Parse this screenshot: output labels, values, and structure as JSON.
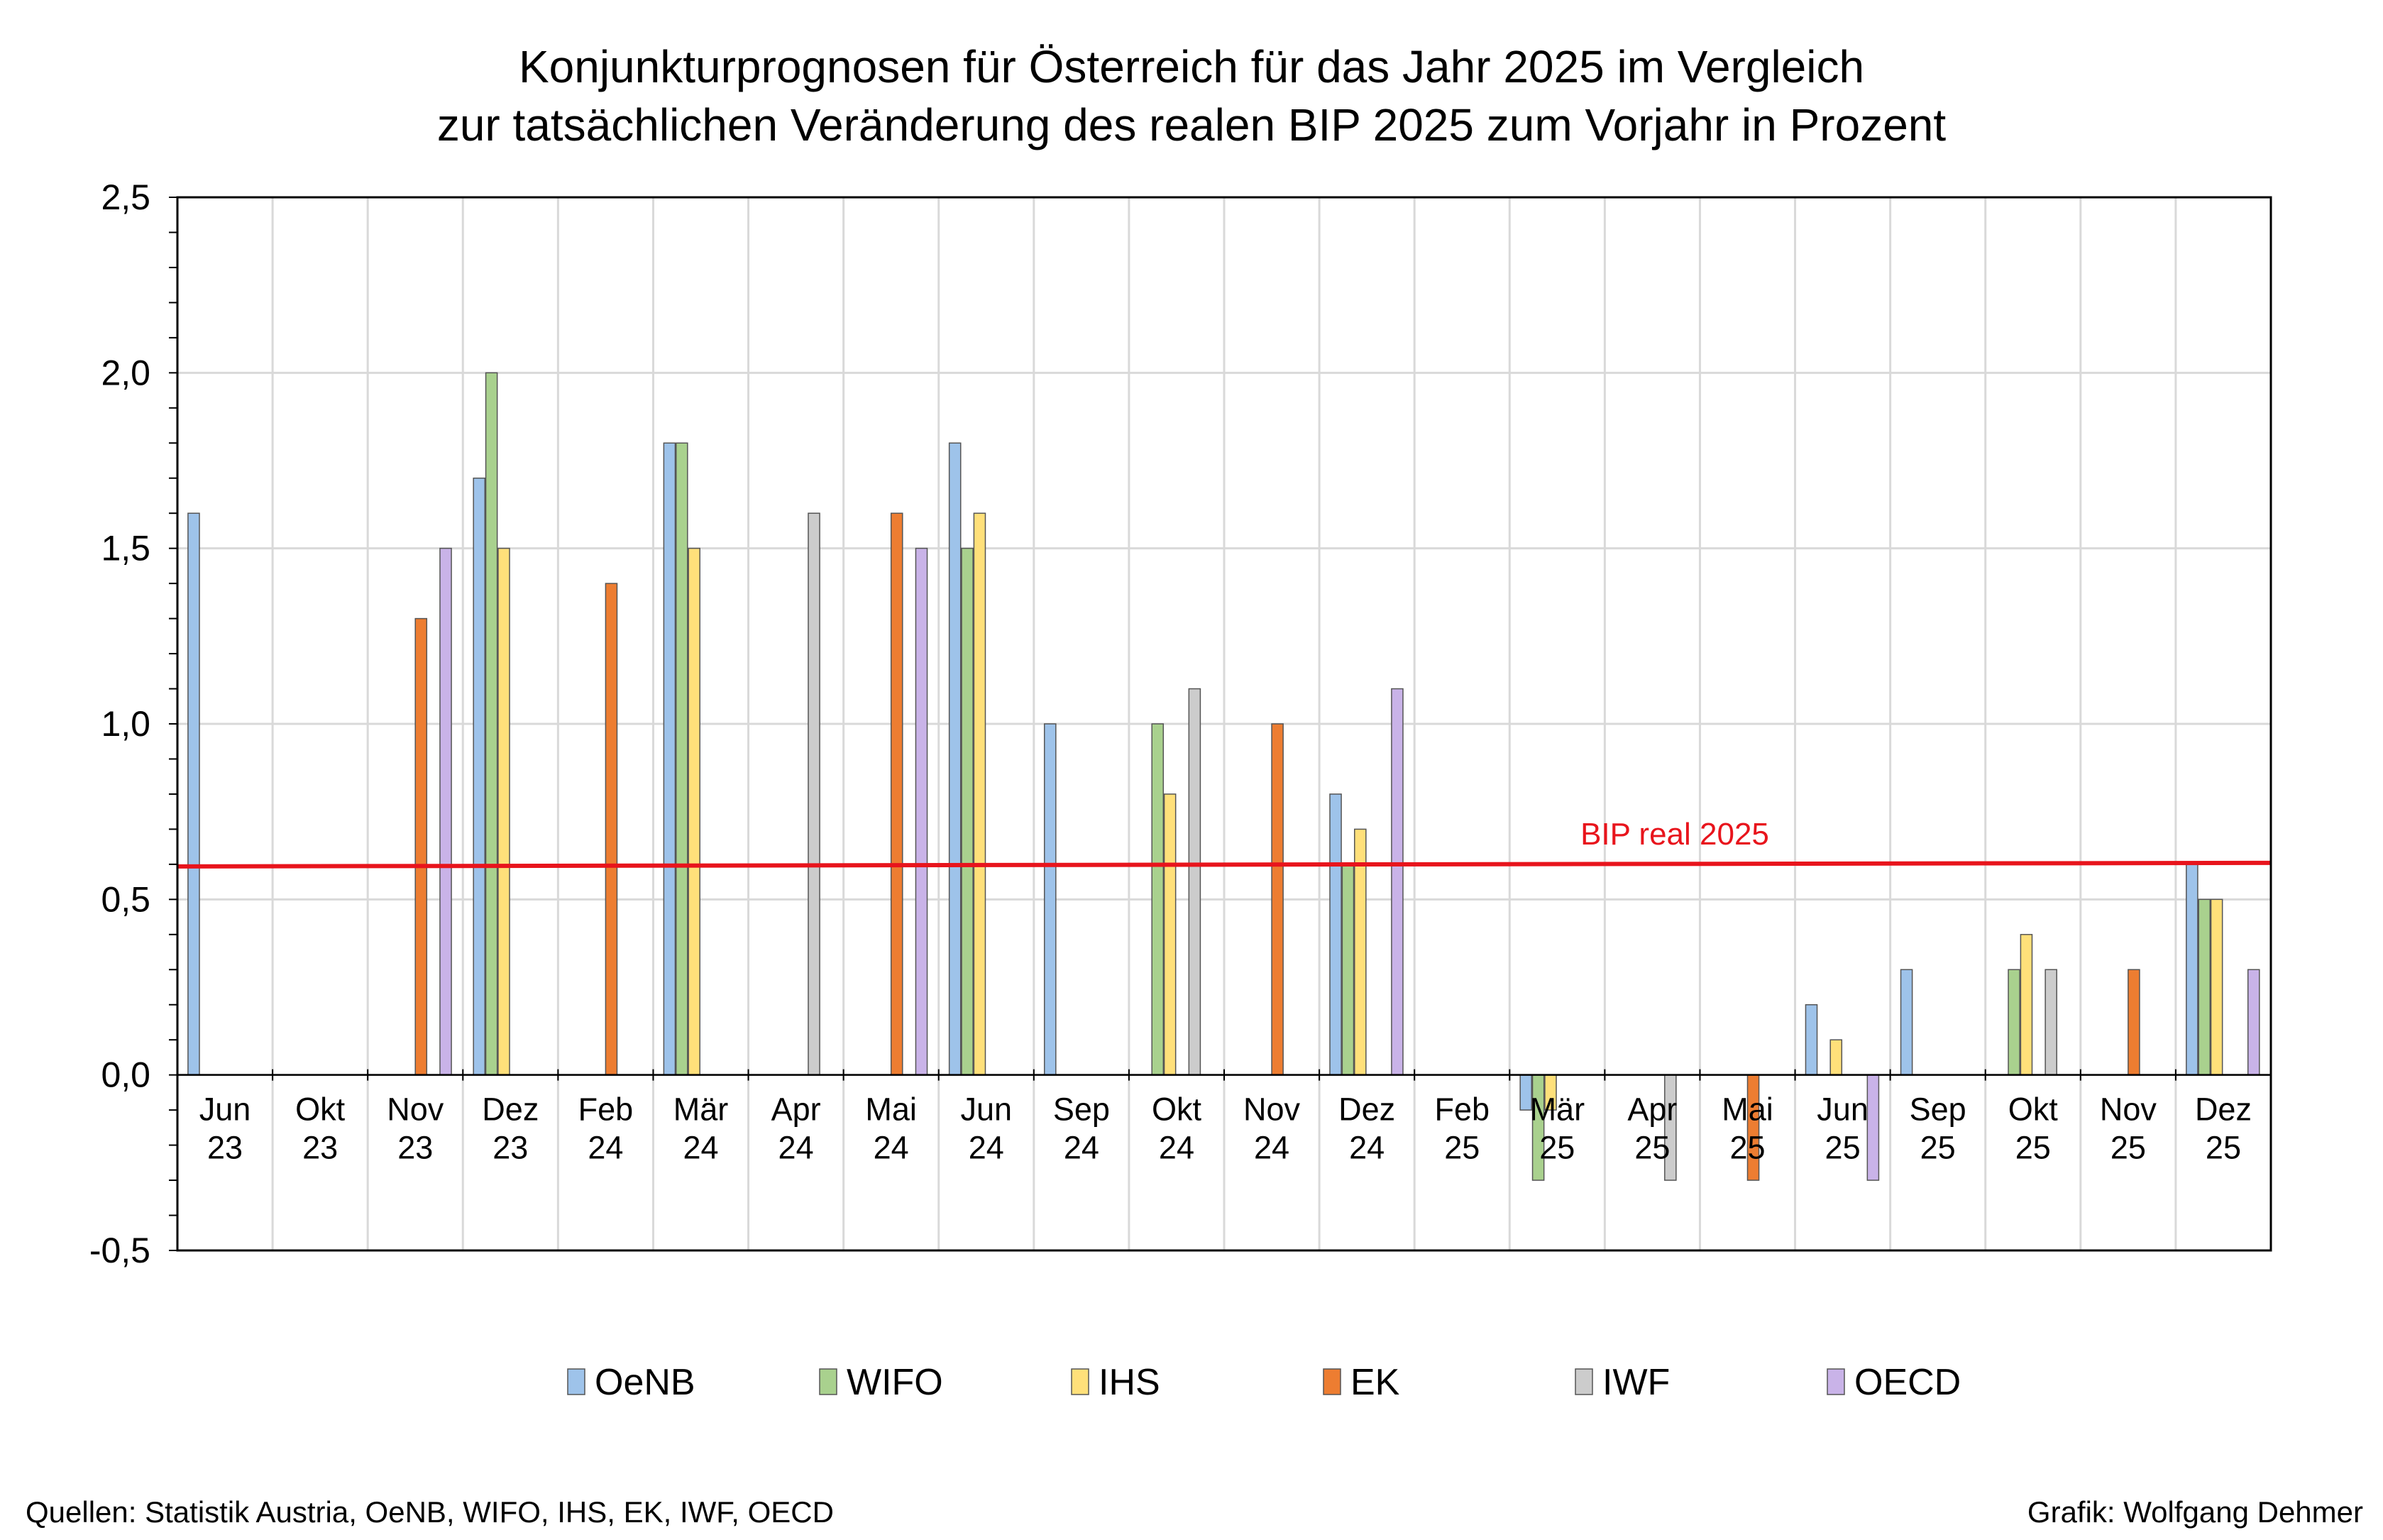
{
  "chart_data": {
    "type": "bar",
    "title": [
      "Konjunkturprognosen für Österreich für das Jahr 2025 im Vergleich",
      "zur tatsächlichen Veränderung des realen BIP 2025 zum Vorjahr in Prozent"
    ],
    "xlabel": "",
    "ylabel": "",
    "ylim": [
      -0.5,
      2.5
    ],
    "yticks": [
      "2,5",
      "2,0",
      "1,5",
      "1,0",
      "0,5",
      "0,0",
      "-0,5"
    ],
    "grid": true,
    "categories": [
      [
        "Jun",
        "23"
      ],
      [
        "Okt",
        "23"
      ],
      [
        "Nov",
        "23"
      ],
      [
        "Dez",
        "23"
      ],
      [
        "Feb",
        "24"
      ],
      [
        "Mär",
        "24"
      ],
      [
        "Apr",
        "24"
      ],
      [
        "Mai",
        "24"
      ],
      [
        "Jun",
        "24"
      ],
      [
        "Sep",
        "24"
      ],
      [
        "Okt",
        "24"
      ],
      [
        "Nov",
        "24"
      ],
      [
        "Dez",
        "24"
      ],
      [
        "Feb",
        "25"
      ],
      [
        "Mär",
        "25"
      ],
      [
        "Apr",
        "25"
      ],
      [
        "Mai",
        "25"
      ],
      [
        "Jun",
        "25"
      ],
      [
        "Sep",
        "25"
      ],
      [
        "Okt",
        "25"
      ],
      [
        "Nov",
        "25"
      ],
      [
        "Dez",
        "25"
      ]
    ],
    "series": [
      {
        "name": "OeNB",
        "color": "#9ec3ea",
        "values": [
          1.6,
          null,
          null,
          1.7,
          null,
          1.8,
          null,
          null,
          1.8,
          1.0,
          null,
          null,
          0.8,
          null,
          -0.1,
          null,
          null,
          0.2,
          0.3,
          null,
          null,
          0.6
        ]
      },
      {
        "name": "WIFO",
        "color": "#a9d18e",
        "values": [
          null,
          null,
          null,
          2.0,
          null,
          1.8,
          null,
          null,
          1.5,
          null,
          1.0,
          null,
          0.6,
          null,
          -0.3,
          null,
          null,
          null,
          null,
          0.3,
          null,
          0.5
        ]
      },
      {
        "name": "IHS",
        "color": "#ffe07a",
        "values": [
          null,
          null,
          null,
          1.5,
          null,
          1.5,
          null,
          null,
          1.6,
          null,
          0.8,
          null,
          0.7,
          null,
          -0.1,
          null,
          null,
          0.1,
          null,
          0.4,
          null,
          0.5
        ]
      },
      {
        "name": "EK",
        "color": "#ed7d31",
        "values": [
          null,
          null,
          1.3,
          null,
          1.4,
          null,
          null,
          1.6,
          null,
          null,
          null,
          1.0,
          null,
          null,
          null,
          null,
          -0.3,
          null,
          null,
          null,
          0.3,
          null
        ]
      },
      {
        "name": "IWF",
        "color": "#cccccc",
        "values": [
          null,
          null,
          null,
          null,
          null,
          null,
          1.6,
          null,
          null,
          null,
          1.1,
          null,
          null,
          null,
          null,
          -0.3,
          null,
          null,
          null,
          0.3,
          null,
          null
        ]
      },
      {
        "name": "OECD",
        "color": "#c9b3e8",
        "values": [
          null,
          null,
          1.5,
          null,
          null,
          null,
          null,
          1.5,
          null,
          null,
          null,
          null,
          1.1,
          null,
          null,
          null,
          null,
          -0.3,
          null,
          null,
          null,
          0.3
        ]
      }
    ],
    "reference_line": {
      "label": "BIP real 2025",
      "value": 0.6,
      "color": "#e8141c"
    },
    "legend_position": "bottom"
  },
  "footer": {
    "source": "Quellen: Statistik Austria, OeNB, WIFO, IHS, EK, IWF, OECD",
    "credit": "Grafik: Wolfgang Dehmer"
  }
}
